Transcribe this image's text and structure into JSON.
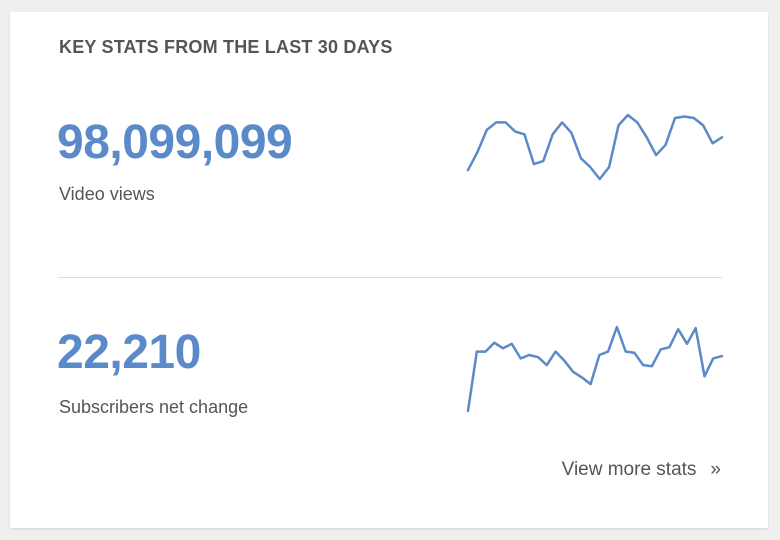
{
  "card": {
    "title": "KEY STATS FROM THE LAST 30 DAYS"
  },
  "stats": [
    {
      "value": "98,099,099",
      "label": "Video views",
      "sparkline": [
        38,
        50,
        65,
        70,
        70,
        64,
        62,
        42,
        44,
        62,
        70,
        63,
        46,
        40,
        32,
        40,
        68,
        75,
        70,
        60,
        48,
        55,
        73,
        74,
        73,
        68,
        56,
        60
      ]
    },
    {
      "value": "22,210",
      "label": "Subscribers net change",
      "sparkline": [
        5,
        58,
        58,
        66,
        61,
        65,
        52,
        55,
        53,
        46,
        58,
        50,
        40,
        35,
        29,
        55,
        58,
        80,
        58,
        57,
        46,
        45,
        60,
        62,
        78,
        65,
        79,
        36,
        52,
        54
      ]
    }
  ],
  "footer": {
    "more_label": "View more stats",
    "chevron": "»"
  },
  "colors": {
    "accent": "#5b8ac9",
    "text": "#555555",
    "divider": "#dcdcdc",
    "background": "#efefef",
    "card": "#ffffff"
  }
}
